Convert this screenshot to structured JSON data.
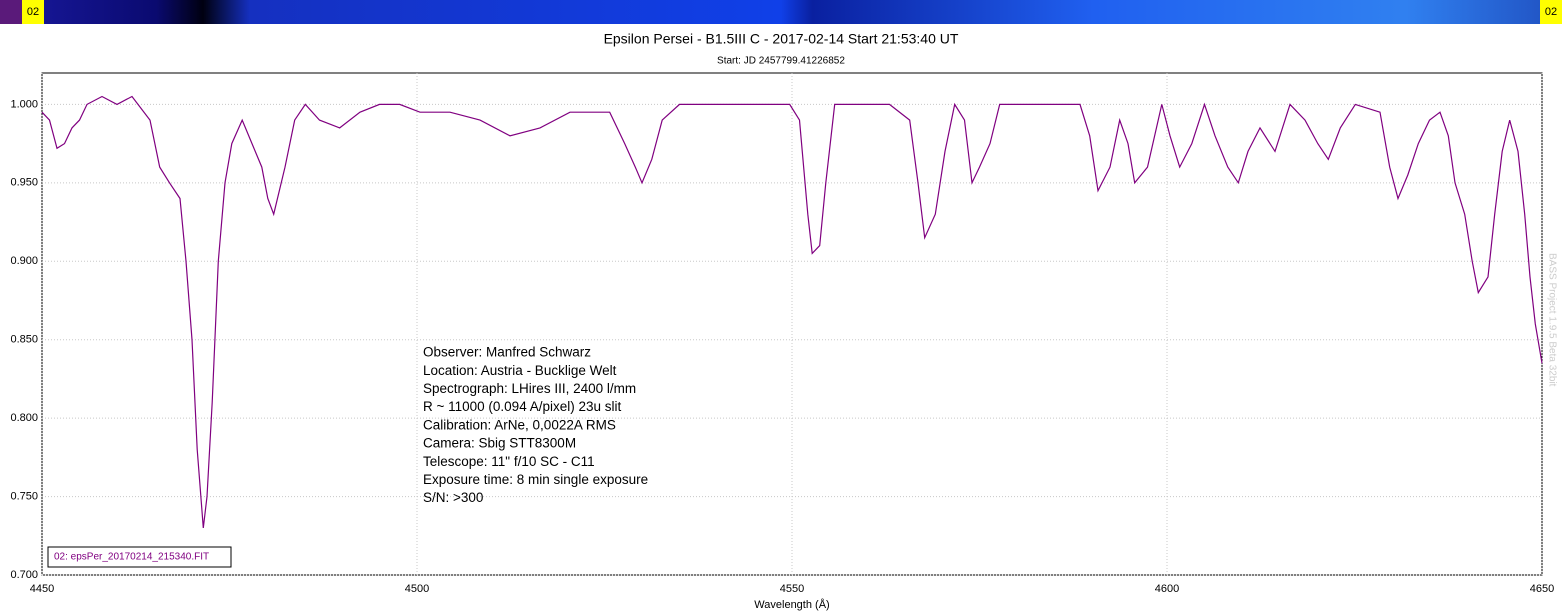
{
  "strip_label": "02",
  "version": "BASS Project 1.9.5 Beta 32bit",
  "chart_data": {
    "type": "line",
    "title": "Epsilon Persei - B1.5III C - 2017-02-14 Start 21:53:40 UT",
    "subtitle": "Start: JD 2457799.41226852",
    "x_label": "Wavelength (Å)",
    "annotation": [
      "Observer: Manfred Schwarz",
      "Location: Austria - Bucklige Welt",
      "Spectrograph: LHires III, 2400 l/mm",
      "R ~ 11000 (0.094 A/pixel) 23u slit",
      "Calibration: ArNe, 0,0022A RMS",
      "Camera: Sbig STT8300M",
      "Telescope: 11\" f/10 SC - C11",
      "Exposure time: 8 min single exposure",
      "S/N:  >300"
    ],
    "x": [
      4450,
      4451,
      4452,
      4453,
      4454,
      4455,
      4456,
      4458,
      4460,
      4462,
      4464.4,
      4465.7,
      4467,
      4468.4,
      4469.2,
      4470,
      4470.7,
      4471.5,
      4472,
      4472.7,
      4473.5,
      4474.4,
      4475.3,
      4476.7,
      4478,
      4479.3,
      4480.1,
      4480.9,
      4482.4,
      4483.7,
      4485.1,
      4487,
      4489.7,
      4492.4,
      4495,
      4497.7,
      4500.4,
      4504.4,
      4508.4,
      4512.4,
      4516.4,
      4520.4,
      4523,
      4525.7,
      4527.7,
      4529.1,
      4530,
      4531.3,
      4532.7,
      4535,
      4537.7,
      4541.7,
      4545.7,
      4549.7,
      4551,
      4552.1,
      4552.7,
      4553.7,
      4554.5,
      4555.7,
      4559,
      4563,
      4565.7,
      4566.8,
      4567.7,
      4569.1,
      4570.4,
      4571.7,
      4573,
      4574,
      4575,
      4576.4,
      4577.7,
      4583,
      4588.4,
      4589.7,
      4590.8,
      4592.4,
      4593.7,
      4594.8,
      4595.7,
      4597.4,
      4599.3,
      4600.4,
      4601.7,
      4603.3,
      4605,
      4606.4,
      4608.1,
      4609.5,
      4610.8,
      4612.4,
      4614.4,
      4616.4,
      4618.4,
      4620.1,
      4621.5,
      4623.1,
      4625.1,
      4628.4,
      4629.7,
      4630.8,
      4632.1,
      4633.5,
      4635,
      4636.4,
      4637.5,
      4638.4,
      4639.7,
      4640.7,
      4641.5,
      4642.8,
      4643.7,
      4644.7,
      4645.7,
      4646.8,
      4647.7,
      4648.4,
      4649.1,
      4650
    ],
    "series": [
      {
        "name": "02: epsPer_20170214_215340.FIT",
        "color": "#800080",
        "values": [
          0.995,
          0.99,
          0.972,
          0.975,
          0.985,
          0.99,
          1.0,
          1.005,
          1.0,
          1.005,
          0.99,
          0.96,
          0.95,
          0.94,
          0.9,
          0.85,
          0.78,
          0.73,
          0.75,
          0.81,
          0.9,
          0.95,
          0.975,
          0.99,
          0.975,
          0.96,
          0.94,
          0.93,
          0.96,
          0.99,
          1.0,
          0.99,
          0.985,
          0.995,
          1.0,
          1.0,
          0.995,
          0.995,
          0.99,
          0.98,
          0.985,
          0.995,
          0.995,
          0.995,
          0.975,
          0.96,
          0.95,
          0.965,
          0.99,
          1.0,
          1.0,
          1.0,
          1.0,
          1.0,
          0.99,
          0.93,
          0.905,
          0.91,
          0.95,
          1.0,
          1.0,
          1.0,
          0.99,
          0.95,
          0.915,
          0.93,
          0.97,
          1.0,
          0.99,
          0.95,
          0.96,
          0.975,
          1.0,
          1.0,
          1.0,
          0.98,
          0.945,
          0.96,
          0.99,
          0.975,
          0.95,
          0.96,
          1.0,
          0.98,
          0.96,
          0.975,
          1.0,
          0.98,
          0.96,
          0.95,
          0.97,
          0.985,
          0.97,
          1.0,
          0.99,
          0.975,
          0.965,
          0.985,
          1.0,
          0.995,
          0.96,
          0.94,
          0.955,
          0.975,
          0.99,
          0.995,
          0.98,
          0.95,
          0.93,
          0.9,
          0.88,
          0.89,
          0.93,
          0.97,
          0.99,
          0.97,
          0.93,
          0.89,
          0.86,
          0.835
        ]
      }
    ],
    "xlim": [
      4450,
      4650
    ],
    "xticks": [
      4450,
      4500,
      4550,
      4600,
      4650
    ],
    "ylim": [
      0.7,
      1.02
    ],
    "yticks": [
      {
        "value": 0.7,
        "label": "0.700"
      },
      {
        "value": 0.75,
        "label": "0.750"
      },
      {
        "value": 0.8,
        "label": "0.800"
      },
      {
        "value": 0.85,
        "label": "0.850"
      },
      {
        "value": 0.9,
        "label": "0.900"
      },
      {
        "value": 0.95,
        "label": "0.950"
      },
      {
        "value": 1.0,
        "label": "1.000"
      }
    ],
    "grid": true
  }
}
